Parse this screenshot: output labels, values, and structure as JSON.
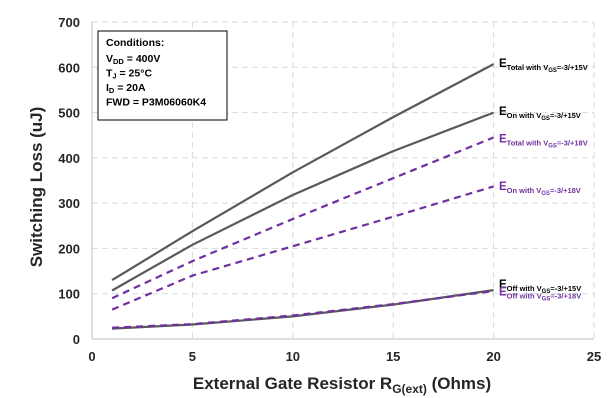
{
  "colors": {
    "vgs15": "#595959",
    "vgs18": "#7030a0",
    "grid": "#d9d9d9",
    "text": "#262626"
  },
  "conditions": {
    "title": "Conditions:",
    "lines": [
      {
        "main": "V",
        "sub": "DD",
        "rest": " = 400V"
      },
      {
        "main": "T",
        "sub": "J",
        "rest": " = 25°C"
      },
      {
        "main": "I",
        "sub": "D",
        "rest": " = 20A"
      },
      {
        "main": "FWD = P3M06060K4",
        "sub": "",
        "rest": ""
      }
    ]
  },
  "chart_data": {
    "type": "line",
    "xlabel": {
      "main": "External Gate Resistor R",
      "sub": "G(ext)",
      "rest": " (Ohms)"
    },
    "ylabel": "Switching Loss (uJ)",
    "xlim": [
      0,
      25
    ],
    "ylim": [
      0,
      700
    ],
    "xticks": [
      "0",
      "5",
      "10",
      "15",
      "20",
      "25"
    ],
    "yticks": [
      "0",
      "100",
      "200",
      "300",
      "400",
      "500",
      "600",
      "700"
    ],
    "grid": true,
    "legend": "inline labels at line ends",
    "series": [
      {
        "label_main": "E",
        "label_sub": "Total with V",
        "label_sub2": "GS",
        "label_end": "=-3/+15V",
        "color_key": "vgs15",
        "dash": false,
        "points": [
          [
            1,
            130
          ],
          [
            5,
            238
          ],
          [
            10,
            368
          ],
          [
            15,
            490
          ],
          [
            20,
            607
          ]
        ]
      },
      {
        "label_main": "E",
        "label_sub": "On with V",
        "label_sub2": "GS",
        "label_end": "=-3/+15V",
        "color_key": "vgs15",
        "dash": false,
        "points": [
          [
            1,
            107
          ],
          [
            5,
            208
          ],
          [
            10,
            318
          ],
          [
            15,
            415
          ],
          [
            20,
            500
          ]
        ]
      },
      {
        "label_main": "E",
        "label_sub": "Total with V",
        "label_sub2": "GS",
        "label_end": "=-3/+18V",
        "color_key": "vgs18",
        "dash": true,
        "points": [
          [
            1,
            90
          ],
          [
            5,
            172
          ],
          [
            10,
            265
          ],
          [
            15,
            355
          ],
          [
            20,
            445
          ]
        ]
      },
      {
        "label_main": "E",
        "label_sub": "On with V",
        "label_sub2": "GS",
        "label_end": "=-3/+18V",
        "color_key": "vgs18",
        "dash": true,
        "points": [
          [
            1,
            65
          ],
          [
            5,
            140
          ],
          [
            10,
            205
          ],
          [
            15,
            270
          ],
          [
            20,
            337
          ]
        ]
      },
      {
        "label_main": "E",
        "label_sub": "Off with V",
        "label_sub2": "GS",
        "label_end": "=-3/+15V",
        "color_key": "vgs15",
        "dash": false,
        "points": [
          [
            1,
            23
          ],
          [
            5,
            32
          ],
          [
            10,
            50
          ],
          [
            15,
            76
          ],
          [
            20,
            108
          ]
        ]
      },
      {
        "label_main": "E",
        "label_sub": "Off with V",
        "label_sub2": "GS",
        "label_end": "=-3/+18V",
        "color_key": "vgs18",
        "dash": true,
        "points": [
          [
            1,
            25
          ],
          [
            5,
            33
          ],
          [
            10,
            52
          ],
          [
            15,
            77
          ],
          [
            20,
            106
          ]
        ]
      }
    ]
  }
}
